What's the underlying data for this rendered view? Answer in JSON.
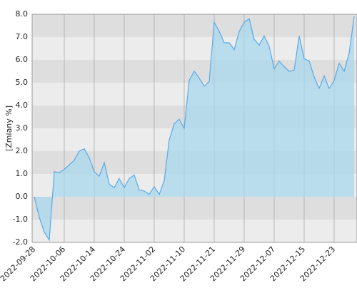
{
  "chart_data": {
    "type": "area",
    "y_label": "[Zmiany %]",
    "categories": [
      "2022-09-28",
      null,
      null,
      null,
      null,
      null,
      "2022-10-06",
      null,
      null,
      null,
      null,
      null,
      "2022-10-14",
      null,
      null,
      null,
      null,
      null,
      "2022-10-24",
      null,
      null,
      null,
      null,
      null,
      "2022-11-02",
      null,
      null,
      null,
      null,
      null,
      "2022-11-10",
      null,
      null,
      null,
      null,
      null,
      "2022-11-21",
      null,
      null,
      null,
      null,
      null,
      "2022-11-29",
      null,
      null,
      null,
      null,
      null,
      "2022-12-07",
      null,
      null,
      null,
      null,
      null,
      "2022-12-15",
      null,
      null,
      null,
      null,
      null,
      "2022-12-23",
      null,
      null,
      null,
      null
    ],
    "values": [
      0.0,
      -0.9,
      -1.55,
      -1.9,
      1.1,
      1.05,
      1.2,
      1.4,
      1.6,
      2.0,
      2.1,
      1.7,
      1.1,
      0.9,
      1.5,
      0.55,
      0.4,
      0.8,
      0.4,
      0.8,
      0.95,
      0.3,
      0.25,
      0.1,
      0.45,
      0.1,
      0.7,
      2.5,
      3.2,
      3.4,
      3.0,
      5.1,
      5.5,
      5.2,
      4.85,
      5.05,
      7.65,
      7.25,
      6.75,
      6.75,
      6.45,
      7.25,
      7.65,
      7.8,
      6.9,
      6.65,
      7.05,
      6.6,
      5.6,
      5.95,
      5.7,
      5.5,
      5.55,
      7.05,
      6.05,
      5.95,
      5.25,
      4.75,
      5.3,
      4.75,
      5.1,
      5.85,
      5.5,
      6.3,
      7.9
    ],
    "color": "#5aa9e6",
    "fill": "#a8d8ee",
    "ylim": [
      -2,
      8
    ],
    "yticks": [
      {
        "value": -2,
        "label": "-2.0"
      },
      {
        "value": -1,
        "label": "-1.0"
      },
      {
        "value": 0,
        "label": "0.0"
      },
      {
        "value": 1,
        "label": "1.0"
      },
      {
        "value": 2,
        "label": "2.0"
      },
      {
        "value": 3,
        "label": "3.0"
      },
      {
        "value": 4,
        "label": "4.0"
      },
      {
        "value": 5,
        "label": "5.0"
      },
      {
        "value": 6,
        "label": "6.0"
      },
      {
        "value": 7,
        "label": "7.0"
      },
      {
        "value": 8,
        "label": "8.0"
      }
    ],
    "band_colors": [
      "#dedede",
      "#ececec"
    ],
    "grid": true
  }
}
